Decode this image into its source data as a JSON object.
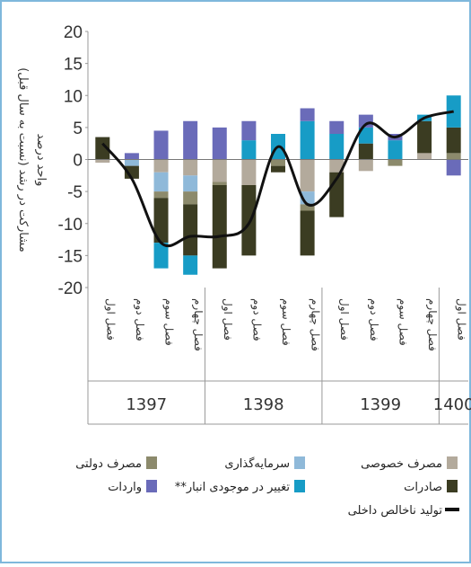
{
  "chart_data": {
    "type": "bar",
    "y_label": "مشارکت در رشد (نسبت به سال قبل)",
    "y_unit": "واحد درصد",
    "categories": [
      "فصل اول",
      "فصل دوم",
      "فصل سوم",
      "فصل چهارم",
      "فصل اول",
      "فصل دوم",
      "فصل سوم",
      "فصل چهارم",
      "فصل اول",
      "فصل دوم",
      "فصل سوم",
      "فصل چهارم",
      "فصل اول"
    ],
    "years": [
      "1397",
      "1398",
      "1399",
      "1400"
    ],
    "series": [
      {
        "name": "مصرف خصوصی",
        "color": "#b3aa9c",
        "values": [
          -0.5,
          0,
          -2,
          -2.5,
          -3.5,
          -4,
          0,
          -5,
          -2,
          -1.8,
          0,
          1,
          0
        ]
      },
      {
        "name": "سرمایه‌گذاری",
        "color": "#8fb9d9",
        "values": [
          0,
          -1,
          -3,
          -2.5,
          0,
          0,
          0,
          -2,
          0,
          0,
          0,
          0,
          0
        ]
      },
      {
        "name": "مصرف دولتی",
        "color": "#8c8a6c",
        "values": [
          0,
          0,
          -1,
          -2,
          -0.5,
          0,
          -1,
          -1,
          0,
          0,
          -1,
          0,
          1
        ]
      },
      {
        "name": "صادرات",
        "color": "#3b3c22",
        "values": [
          3.5,
          -2,
          -7,
          -8,
          -13,
          -11,
          -1,
          -7,
          -7,
          2.5,
          0,
          5,
          4
        ]
      },
      {
        "name": "تغییر در موجودی انبار**",
        "color": "#179cc6",
        "values": [
          0,
          0,
          -4,
          -3,
          0,
          3,
          4,
          6,
          4,
          2.5,
          3,
          1,
          5
        ]
      },
      {
        "name": "واردات",
        "color": "#6a6bb9",
        "values": [
          0,
          1,
          4.5,
          6,
          5,
          3,
          0,
          2,
          2,
          2,
          1,
          0,
          -2.5
        ]
      },
      {
        "name": "تولید ناخالص داخلی",
        "type": "line",
        "color": "#111111",
        "values": [
          2.5,
          -3,
          -13,
          -12,
          -12,
          -10,
          2,
          -7,
          -3,
          5.5,
          3.5,
          6.5,
          7.5
        ]
      }
    ],
    "ylim": [
      -20,
      20
    ],
    "yticks": [
      -20,
      -15,
      -10,
      -5,
      0,
      5,
      10,
      15,
      20
    ]
  }
}
